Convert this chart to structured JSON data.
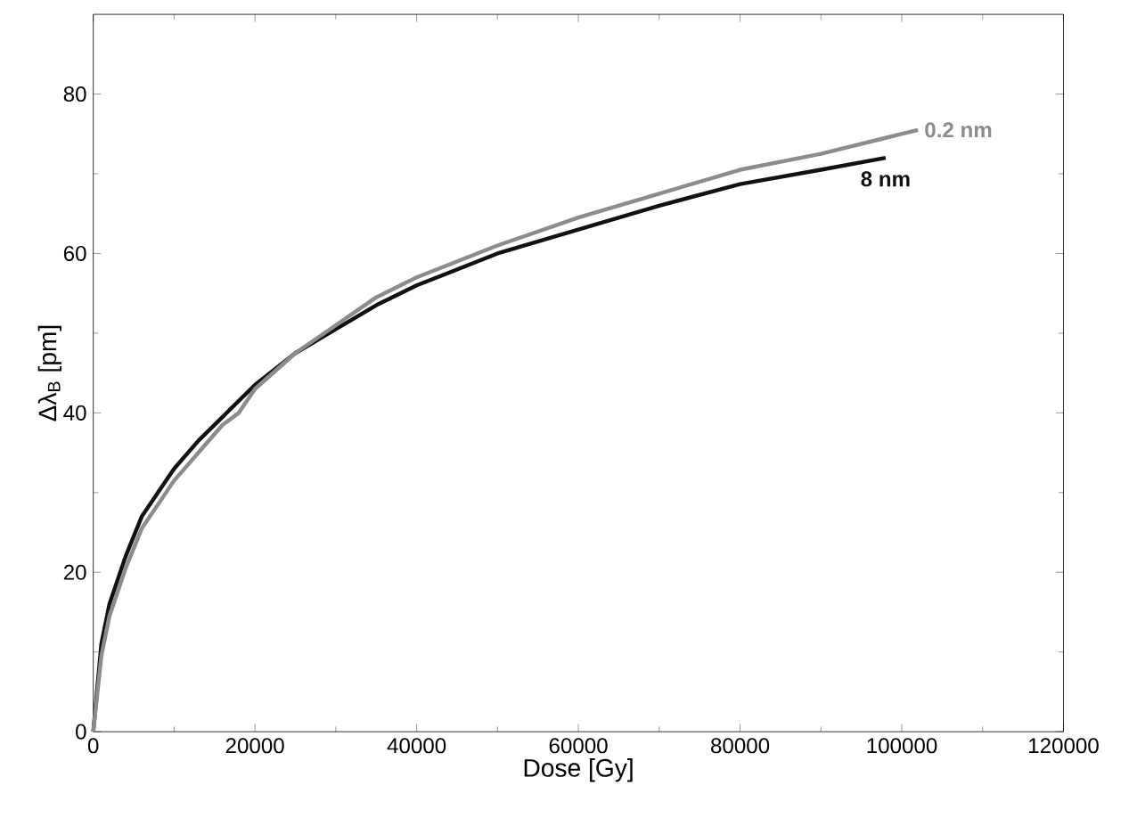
{
  "chart_data": {
    "type": "line",
    "xlabel": "Dose [Gy]",
    "ylabel": "Δλ$_{B}$ [pm]",
    "xlim": [
      0,
      120000
    ],
    "ylim": [
      0,
      90
    ],
    "xticks": [
      0,
      20000,
      40000,
      60000,
      80000,
      100000,
      120000
    ],
    "yticks": [
      0,
      20,
      40,
      60,
      80
    ],
    "grid": false,
    "legend": false,
    "series": [
      {
        "name": "0.2 nm",
        "color": "#8c8c8c",
        "x": [
          0,
          1000,
          2000,
          4000,
          6000,
          8000,
          10000,
          13000,
          16000,
          18000,
          20000,
          25000,
          30000,
          35000,
          40000,
          50000,
          60000,
          70000,
          80000,
          90000,
          98000,
          102000
        ],
        "values": [
          0,
          9.5,
          14.5,
          20.5,
          25.5,
          28.5,
          31.5,
          35,
          38.5,
          40,
          43,
          47.5,
          51,
          54.5,
          57,
          61,
          64.5,
          67.5,
          70.5,
          72.5,
          74.5,
          75.5
        ]
      },
      {
        "name": "8 nm",
        "color": "#111111",
        "x": [
          0,
          1000,
          2000,
          4000,
          6000,
          8000,
          10000,
          13000,
          16000,
          20000,
          25000,
          30000,
          35000,
          40000,
          50000,
          60000,
          70000,
          80000,
          90000,
          98000
        ],
        "values": [
          0,
          11,
          16,
          22,
          27,
          30,
          33,
          36.5,
          39.5,
          43.5,
          47.5,
          50.5,
          53.5,
          56,
          60,
          63,
          66,
          68.7,
          70.5,
          72
        ]
      }
    ]
  }
}
